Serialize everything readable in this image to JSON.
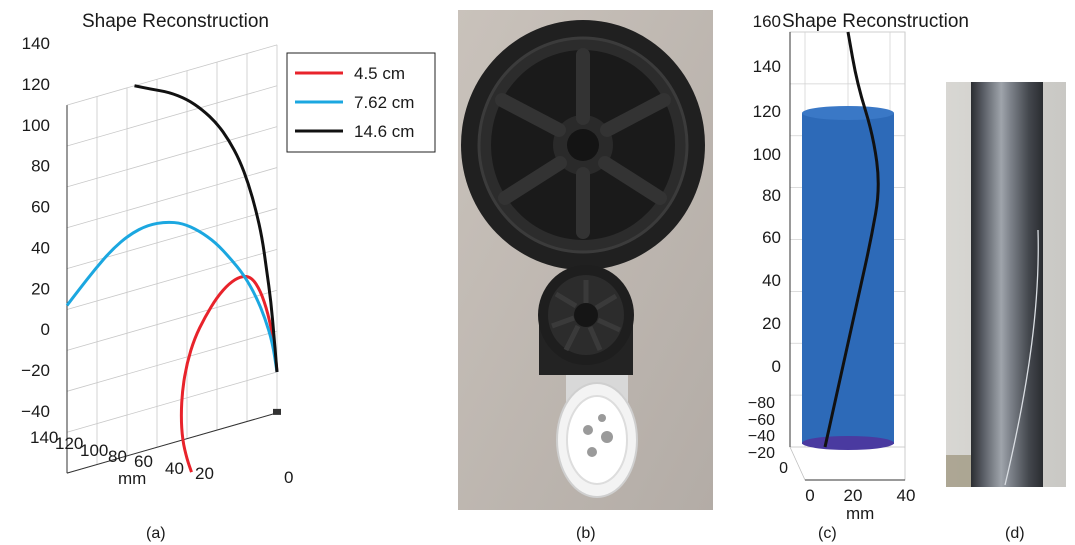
{
  "chart_data": [
    {
      "type": "line",
      "panel": "(a)",
      "title": "Shape Reconstruction",
      "projection": "3d",
      "zlim": [
        -40,
        140
      ],
      "z_ticks": [
        "140",
        "120",
        "100",
        "80",
        "60",
        "40",
        "20",
        "0",
        "−20",
        "−40"
      ],
      "x_ticks": [
        "140",
        "120",
        "100",
        "80",
        "60",
        "40",
        "20",
        "0"
      ],
      "xlabel": "mm",
      "grid": true,
      "legend": {
        "placement": "top-right"
      },
      "series": [
        {
          "name": "4.5 cm",
          "color": "#e8232b",
          "points": [
            [
              0,
              -20
            ],
            [
              2,
              -5
            ],
            [
              6,
              10
            ],
            [
              11,
              22
            ],
            [
              17,
              30
            ],
            [
              24,
              32
            ],
            [
              32,
              30
            ],
            [
              40,
              25
            ],
            [
              48,
              17
            ],
            [
              55,
              8
            ],
            [
              60,
              -3
            ],
            [
              63,
              -15
            ],
            [
              64,
              -28
            ],
            [
              63,
              -40
            ],
            [
              60,
              -50
            ],
            [
              57,
              -57
            ]
          ]
        },
        {
          "name": "7.62 cm",
          "color": "#1ba7e0",
          "points": [
            [
              0,
              -20
            ],
            [
              3,
              -5
            ],
            [
              8,
              8
            ],
            [
              14,
              20
            ],
            [
              22,
              32
            ],
            [
              31,
              42
            ],
            [
              41,
              52
            ],
            [
              52,
              60
            ],
            [
              63,
              66
            ],
            [
              74,
              69
            ],
            [
              86,
              70
            ],
            [
              98,
              68
            ],
            [
              110,
              63
            ],
            [
              121,
              56
            ],
            [
              132,
              48
            ],
            [
              140,
              42
            ]
          ]
        },
        {
          "name": "14.6 cm",
          "color": "#111111",
          "points": [
            [
              0,
              -20
            ],
            [
              2,
              -2
            ],
            [
              4,
              15
            ],
            [
              7,
              32
            ],
            [
              10,
              48
            ],
            [
              14,
              62
            ],
            [
              19,
              76
            ],
            [
              25,
              89
            ],
            [
              32,
              100
            ],
            [
              40,
              110
            ],
            [
              50,
              119
            ],
            [
              60,
              126
            ],
            [
              72,
              132
            ],
            [
              84,
              136
            ],
            [
              95,
              140
            ]
          ]
        }
      ]
    },
    {
      "type": "line",
      "panel": "(c)",
      "title": "Shape Reconstruction",
      "projection": "3d",
      "zlim": [
        0,
        160
      ],
      "z_ticks": [
        "160",
        "140",
        "120",
        "100",
        "80",
        "60",
        "40",
        "20",
        "0"
      ],
      "y_ticks": [
        "−80",
        "−60",
        "−40",
        "−20",
        "0"
      ],
      "x_ticks": [
        "0",
        "20",
        "40"
      ],
      "xlabel": "mm",
      "grid": true,
      "surface": {
        "shape": "cylinder",
        "color": "#2d6ab8"
      },
      "series": [
        {
          "color": "#111111",
          "points": [
            [
              -0.5,
              0
            ],
            [
              -0.25,
              20
            ],
            [
              0.0,
              40
            ],
            [
              0.25,
              60
            ],
            [
              0.5,
              80
            ],
            [
              0.7,
              100
            ],
            [
              0.55,
              120
            ],
            [
              0.2,
              140
            ],
            [
              0.0,
              160
            ]
          ]
        }
      ]
    }
  ],
  "panels": {
    "a_label": "(a)",
    "b_label": "(b)",
    "c_label": "(c)",
    "d_label": "(d)"
  }
}
